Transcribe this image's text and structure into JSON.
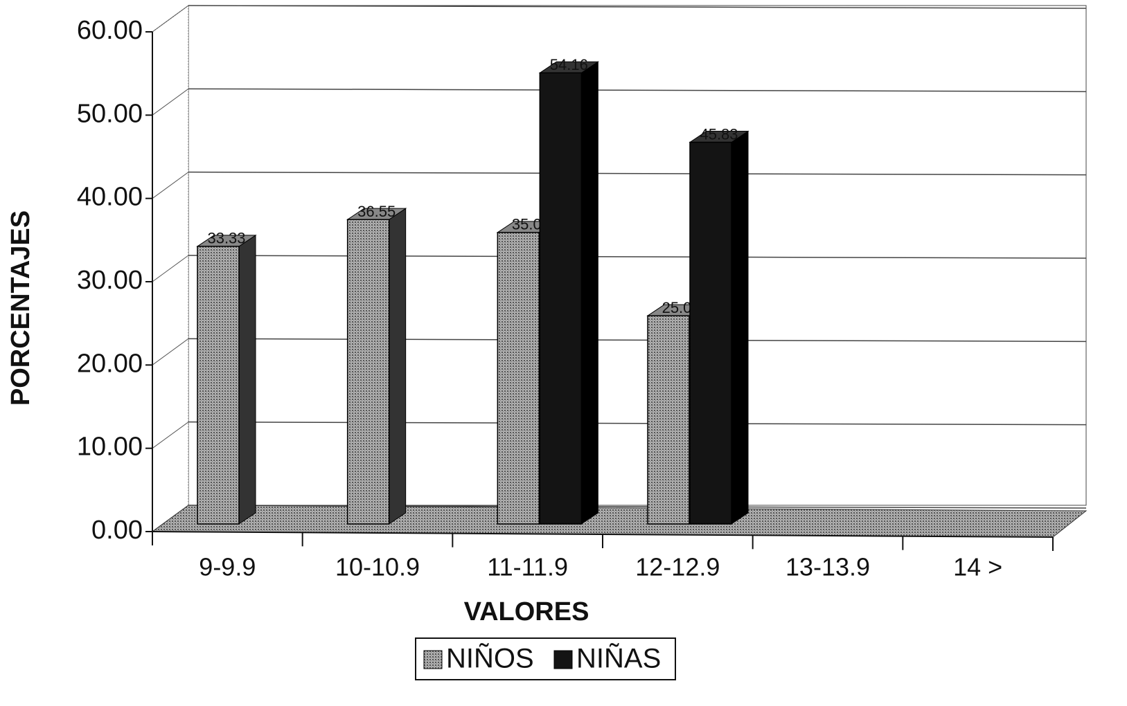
{
  "chart_data": {
    "type": "bar3d",
    "x_label": "VALORES",
    "y_label": "PORCENTAJES",
    "categories": [
      "9-9.9",
      "10-10.9",
      "11-11.9",
      "12-12.9",
      "13-13.9",
      "14 >"
    ],
    "series": [
      {
        "name": "NIÑOS",
        "color": "#9a9a9a",
        "values": [
          33.33,
          36.55,
          35.0,
          25.0,
          null,
          null
        ],
        "value_labels": [
          "33.33",
          "36.55",
          "35.0",
          "25.0",
          null,
          null
        ]
      },
      {
        "name": "NIÑAS",
        "color": "#141414",
        "values": [
          null,
          null,
          54.16,
          45.83,
          null,
          null
        ],
        "value_labels": [
          null,
          null,
          "54.16",
          "45.83",
          null,
          null
        ]
      }
    ],
    "ylim": [
      0,
      60
    ],
    "yticks": [
      {
        "value": 0,
        "label": "0.00"
      },
      {
        "value": 10,
        "label": "10.00"
      },
      {
        "value": 20,
        "label": "20.00"
      },
      {
        "value": 30,
        "label": "30.00"
      },
      {
        "value": 40,
        "label": "40.00"
      },
      {
        "value": 50,
        "label": "50.00"
      },
      {
        "value": 60,
        "label": "60.00"
      }
    ],
    "grid": true,
    "legend": "bottom"
  }
}
